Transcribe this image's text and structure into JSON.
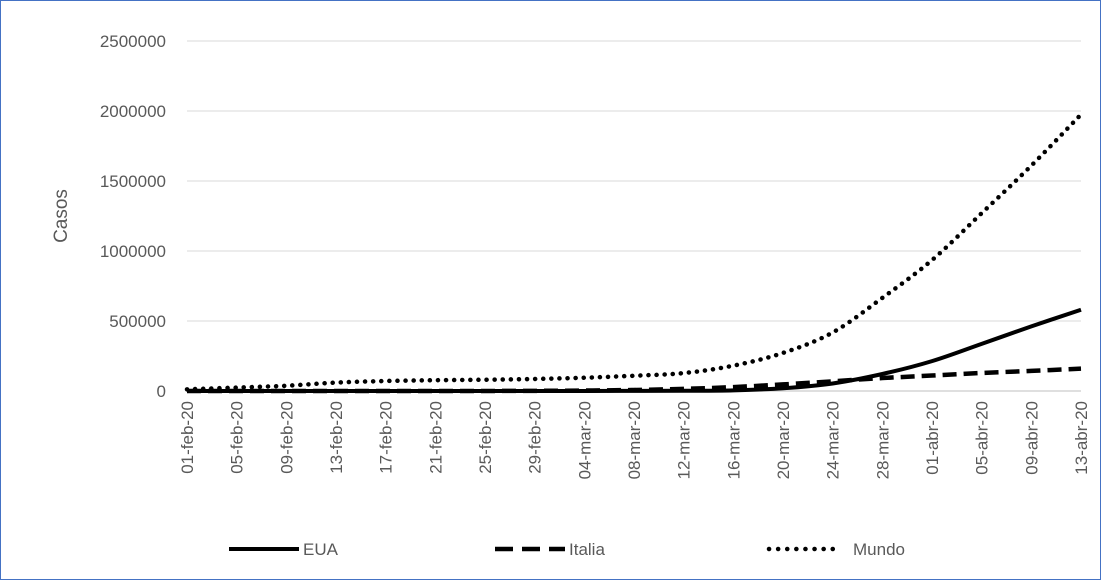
{
  "chart_data": {
    "type": "line",
    "ylabel": "Casos",
    "xlabel": "",
    "ylim": [
      0,
      2500000
    ],
    "yticks": [
      0,
      500000,
      1000000,
      1500000,
      2000000,
      2500000
    ],
    "grid": true,
    "legend_position": "bottom",
    "x": [
      "01-feb-20",
      "05-feb-20",
      "09-feb-20",
      "13-feb-20",
      "17-feb-20",
      "21-feb-20",
      "25-feb-20",
      "29-feb-20",
      "04-mar-20",
      "08-mar-20",
      "12-mar-20",
      "16-mar-20",
      "20-mar-20",
      "24-mar-20",
      "28-mar-20",
      "01-abr-20",
      "05-abr-20",
      "09-abr-20",
      "13-abr-20"
    ],
    "series": [
      {
        "name": "EUA",
        "style": "solid",
        "color": "#000000",
        "values": [
          8,
          11,
          12,
          15,
          15,
          15,
          53,
          70,
          217,
          696,
          1663,
          4632,
          19383,
          53740,
          121478,
          213372,
          336673,
          461437,
          580619
        ]
      },
      {
        "name": "Italia",
        "style": "dashed",
        "color": "#000000",
        "values": [
          2,
          2,
          3,
          3,
          3,
          20,
          322,
          1128,
          3089,
          7375,
          15113,
          27980,
          47021,
          69176,
          92472,
          110574,
          128948,
          143626,
          159516
        ]
      },
      {
        "name": "Mundo",
        "style": "dotted",
        "color": "#000000",
        "values": [
          12000,
          24500,
          37500,
          60000,
          71300,
          77000,
          80500,
          86000,
          95000,
          109000,
          128000,
          181000,
          272000,
          418000,
          665000,
          935000,
          1270000,
          1610000,
          1975000
        ]
      }
    ]
  }
}
